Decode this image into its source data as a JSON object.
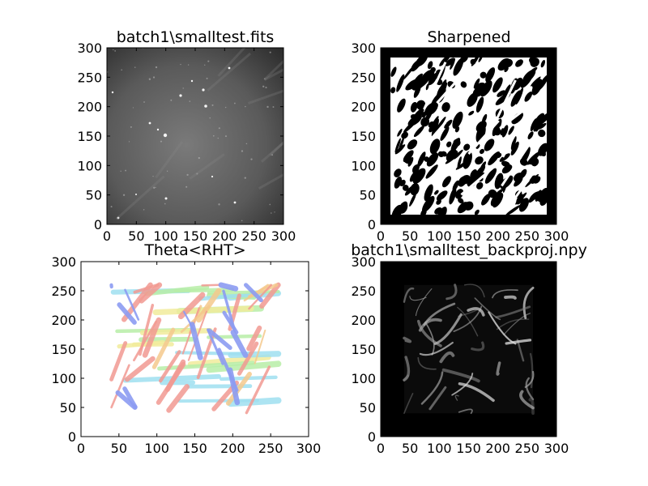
{
  "chart_data": [
    {
      "type": "image",
      "title": "batch1\\smalltest.fits",
      "colormap": "gray",
      "xlim": [
        0,
        300
      ],
      "ylim": [
        0,
        300
      ],
      "xticks": [
        "0",
        "50",
        "100",
        "150",
        "200",
        "250",
        "300"
      ],
      "yticks": [
        "0",
        "50",
        "100",
        "150",
        "200",
        "250",
        "300"
      ]
    },
    {
      "type": "image",
      "title": "Sharpened",
      "colormap": "binary black/white",
      "xlim": [
        0,
        300
      ],
      "ylim": [
        0,
        300
      ],
      "xticks": [
        "0",
        "50",
        "100",
        "150",
        "200",
        "250",
        "300"
      ],
      "yticks": [
        "0",
        "50",
        "100",
        "150",
        "200",
        "250",
        "300"
      ]
    },
    {
      "type": "scatter",
      "title": "Theta<RHT>",
      "colormap": "jet (pastel)",
      "xlim": [
        0,
        300
      ],
      "ylim": [
        0,
        300
      ],
      "data_extent": [
        40,
        260,
        40,
        260
      ],
      "xticks": [
        "0",
        "50",
        "100",
        "150",
        "200",
        "250",
        "300"
      ],
      "yticks": [
        "0",
        "50",
        "100",
        "150",
        "200",
        "250",
        "300"
      ]
    },
    {
      "type": "image",
      "title": "batch1\\smalltest_backproj.npy",
      "colormap": "gray",
      "xlim": [
        0,
        300
      ],
      "ylim": [
        0,
        300
      ],
      "data_extent": [
        40,
        260,
        40,
        260
      ],
      "xticks": [
        "0",
        "50",
        "100",
        "150",
        "200",
        "250",
        "300"
      ],
      "yticks": [
        "0",
        "50",
        "100",
        "150",
        "200",
        "250",
        "300"
      ]
    }
  ],
  "colors": {
    "blue": "#8c9cf2",
    "cyan": "#9fe0f0",
    "green": "#b8eea8",
    "yellow": "#f2ec9c",
    "orange": "#f5c98e",
    "red": "#f29a92"
  }
}
